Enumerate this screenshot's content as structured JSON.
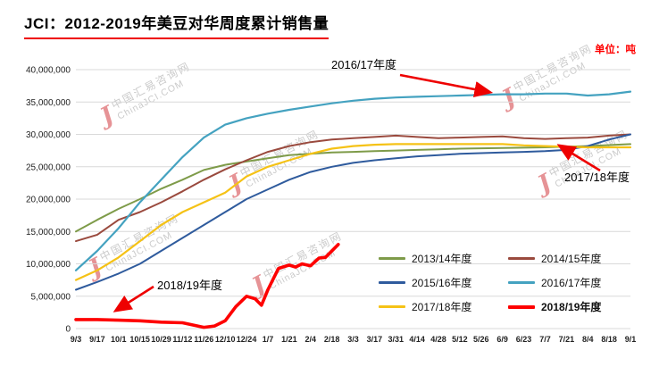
{
  "header": {
    "title": "JCI：2012-2019年美豆对华周度累计销售量",
    "unit_label": "单位：吨"
  },
  "watermark": {
    "line1": "中国汇易咨询网",
    "line2": "ChinaJCI.COM",
    "logo_glyph": "J"
  },
  "chart_data": {
    "type": "line",
    "title": "JCI：2012-2019年美豆对华周度累计销售量",
    "unit": "吨",
    "ylim": [
      0,
      40000000
    ],
    "y_tick_step": 5000000,
    "y_tick_labels": [
      "0",
      "5,000,000",
      "10,000,000",
      "15,000,000",
      "20,000,000",
      "25,000,000",
      "30,000,000",
      "35,000,000",
      "40,000,000"
    ],
    "categories": [
      "9/3",
      "9/17",
      "10/1",
      "10/15",
      "10/29",
      "11/12",
      "11/26",
      "12/10",
      "12/24",
      "1/7",
      "1/21",
      "2/4",
      "2/18",
      "3/3",
      "3/17",
      "3/31",
      "4/14",
      "4/28",
      "5/12",
      "5/26",
      "6/9",
      "6/23",
      "7/7",
      "7/21",
      "8/4",
      "8/18",
      "9/1"
    ],
    "grid": true,
    "legend_position": "inside-bottom-right",
    "annotation_color": "#ee0000",
    "series": [
      {
        "name": "2013/14年度",
        "color": "#7e9b49",
        "width": 2,
        "values": [
          15000000,
          16800000,
          18500000,
          20000000,
          21600000,
          23000000,
          24500000,
          25300000,
          25800000,
          26300000,
          26800000,
          27000000,
          27200000,
          27300000,
          27400000,
          27500000,
          27600000,
          27700000,
          27800000,
          27850000,
          27900000,
          27950000,
          28000000,
          28100000,
          28200000,
          28350000,
          28500000
        ]
      },
      {
        "name": "2014/15年度",
        "color": "#9a4a3e",
        "width": 2,
        "values": [
          13500000,
          14500000,
          16800000,
          18000000,
          19500000,
          21200000,
          23000000,
          24600000,
          26000000,
          27300000,
          28200000,
          28800000,
          29200000,
          29400000,
          29600000,
          29800000,
          29600000,
          29400000,
          29500000,
          29600000,
          29700000,
          29400000,
          29300000,
          29400000,
          29500000,
          29800000,
          30000000
        ]
      },
      {
        "name": "2015/16年度",
        "color": "#2f5b9d",
        "width": 2,
        "values": [
          6000000,
          7200000,
          8500000,
          10000000,
          12000000,
          14000000,
          16000000,
          18000000,
          20000000,
          21500000,
          23000000,
          24200000,
          25000000,
          25600000,
          26000000,
          26300000,
          26600000,
          26800000,
          27000000,
          27100000,
          27200000,
          27300000,
          27400000,
          27600000,
          28200000,
          29200000,
          30000000
        ]
      },
      {
        "name": "2016/17年度",
        "color": "#44a2c0",
        "width": 2.2,
        "values": [
          9000000,
          12000000,
          15500000,
          19500000,
          23000000,
          26500000,
          29500000,
          31500000,
          32500000,
          33200000,
          33800000,
          34300000,
          34800000,
          35200000,
          35500000,
          35700000,
          35800000,
          35900000,
          36000000,
          36100000,
          36200000,
          36200000,
          36300000,
          36300000,
          36000000,
          36200000,
          36600000
        ]
      },
      {
        "name": "2017/18年度",
        "color": "#f5c216",
        "width": 2.2,
        "values": [
          7500000,
          9000000,
          11000000,
          13500000,
          16000000,
          18000000,
          19500000,
          21000000,
          23500000,
          25000000,
          26000000,
          27000000,
          27800000,
          28200000,
          28400000,
          28500000,
          28500000,
          28500000,
          28500000,
          28500000,
          28500000,
          28300000,
          28200000,
          28100000,
          28000000,
          28000000,
          28000000
        ]
      },
      {
        "name": "2018/19年度",
        "color": "#fe0000",
        "width": 3.6,
        "x": [
          0,
          1,
          2,
          3,
          4,
          5,
          6,
          6.5,
          7,
          7.5,
          8,
          8.4,
          8.7,
          9,
          9.5,
          10,
          10.3,
          10.6,
          11,
          11.4,
          11.7,
          12.3
        ],
        "values": [
          1400000,
          1400000,
          1300000,
          1200000,
          1000000,
          900000,
          200000,
          400000,
          1200000,
          3400000,
          5000000,
          4600000,
          3600000,
          6000000,
          9300000,
          9800000,
          9500000,
          10000000,
          9700000,
          10900000,
          11000000,
          13000000
        ]
      }
    ],
    "annotations": [
      {
        "label": "2016/17年度"
      },
      {
        "label": "2017/18年度"
      },
      {
        "label": "2018/19年度"
      }
    ]
  }
}
